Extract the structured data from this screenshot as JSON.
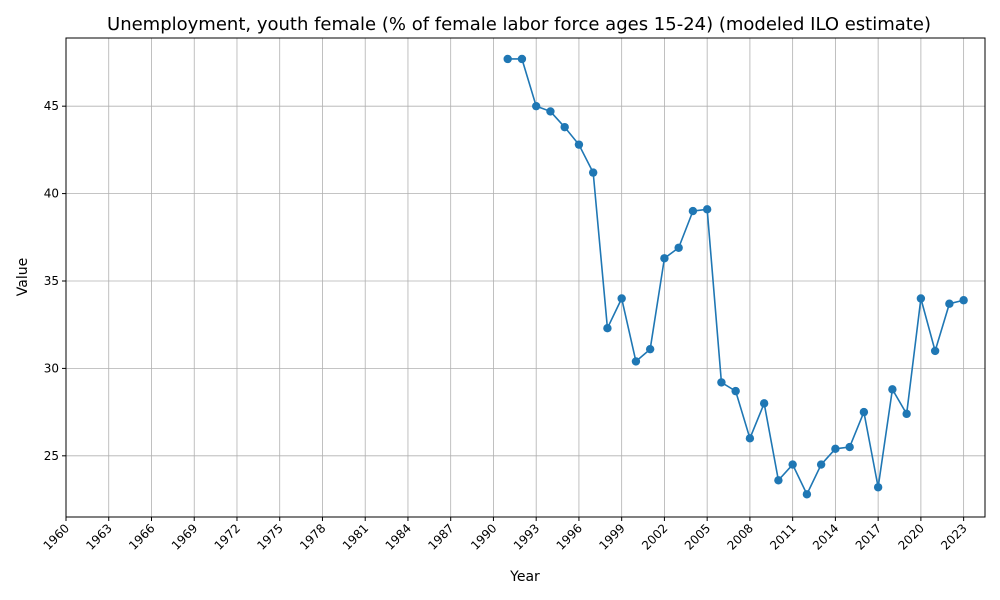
{
  "chart_data": {
    "type": "line",
    "title": "Unemployment, youth female (% of female labor force ages 15-24) (modeled ILO estimate)",
    "xlabel": "Year",
    "ylabel": "Value",
    "xlim": [
      1960,
      2024.5
    ],
    "ylim": [
      21.5,
      48.9
    ],
    "grid": true,
    "color": "#1f77b4",
    "x_ticks": [
      "1960",
      "1963",
      "1966",
      "1969",
      "1972",
      "1975",
      "1978",
      "1981",
      "1984",
      "1987",
      "1990",
      "1993",
      "1996",
      "1999",
      "2002",
      "2005",
      "2008",
      "2011",
      "2014",
      "2017",
      "2020",
      "2023"
    ],
    "y_ticks": [
      "25",
      "30",
      "35",
      "40",
      "45"
    ],
    "series": [
      {
        "x": [
          1991,
          1992,
          1993,
          1994,
          1995,
          1996,
          1997,
          1998,
          1999,
          2000,
          2001,
          2002,
          2003,
          2004,
          2005,
          2006,
          2007,
          2008,
          2009,
          2010,
          2011,
          2012,
          2013,
          2014,
          2015,
          2016,
          2017,
          2018,
          2019,
          2020,
          2021,
          2022,
          2023
        ],
        "values": [
          47.7,
          47.7,
          45.0,
          44.7,
          43.8,
          42.8,
          41.2,
          32.3,
          34.0,
          30.4,
          31.1,
          36.3,
          36.9,
          39.0,
          39.1,
          29.2,
          28.7,
          26.0,
          28.0,
          23.6,
          24.5,
          22.8,
          24.5,
          25.4,
          25.5,
          27.5,
          23.2,
          28.8,
          27.4,
          34.0,
          31.0,
          33.7,
          33.9
        ]
      }
    ]
  }
}
